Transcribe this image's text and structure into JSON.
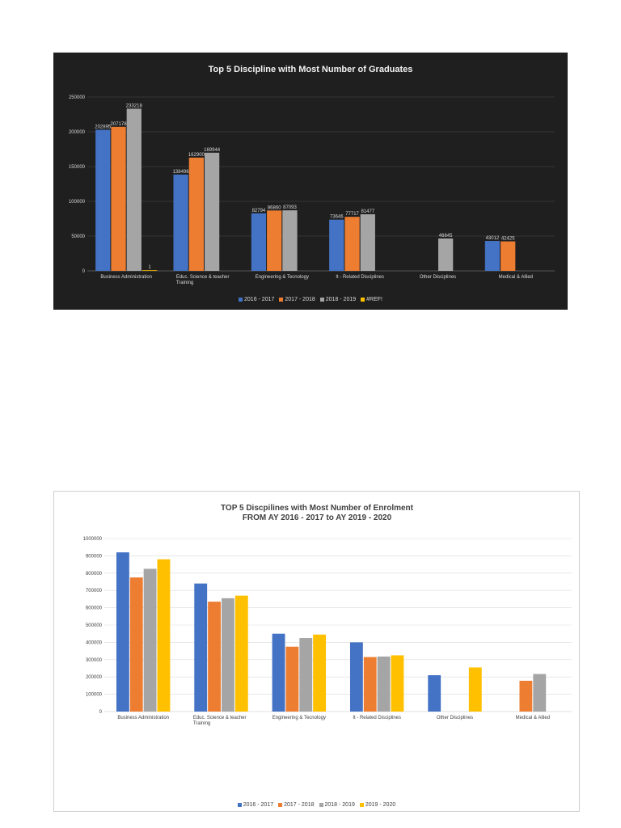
{
  "chart_data": [
    {
      "type": "bar",
      "title": "Top 5 Discipline with Most Number of Graduates",
      "categories": [
        "Business Administration",
        "Educ. Science & teacher Training",
        "Engineering & Tecnology",
        "It - Related Disciplines",
        "Other Disciplines",
        "Medical & Allied"
      ],
      "series": [
        {
          "name": "2016 - 2017",
          "color": "#4472c4",
          "values": [
            202895,
            138496,
            82794,
            73646,
            null,
            43012
          ]
        },
        {
          "name": "2017 - 2018",
          "color": "#ed7d31",
          "values": [
            207178,
            162900,
            86860,
            77717,
            null,
            42425
          ]
        },
        {
          "name": "2018 - 2019",
          "color": "#a5a5a5",
          "values": [
            233218,
            169944,
            87093,
            81477,
            46645,
            null
          ]
        },
        {
          "name": "#REF!",
          "color": "#ffc000",
          "values": [
            1,
            null,
            null,
            null,
            null,
            null
          ]
        }
      ],
      "value_labels": [
        [
          "202895",
          "138496",
          "82794",
          "73646",
          "",
          "43012"
        ],
        [
          "207178",
          "162900",
          "86860",
          "77717",
          "",
          "42425"
        ],
        [
          "233218",
          "169944",
          "87093",
          "81477",
          "46645",
          ""
        ],
        [
          "1",
          "",
          "",
          "",
          "",
          ""
        ]
      ],
      "yticks": [
        "0",
        "50000",
        "100000",
        "150000",
        "200000",
        "250000"
      ],
      "ylim": [
        0,
        250000
      ],
      "grid": true,
      "legend": "bottom"
    },
    {
      "type": "bar",
      "title": "TOP 5 Discpilines with Most Number of Enrolment",
      "subtitle": "FROM AY 2016 - 2017 to AY 2019 - 2020",
      "categories": [
        "Business Administration",
        "Educ. Science & teacher Training",
        "Engineering & Tecnology",
        "It - Related Disciplines",
        "Other Disciplines",
        "Medical & Allied"
      ],
      "series": [
        {
          "name": "2016 - 2017",
          "color": "#4472c4",
          "values": [
            920000,
            740000,
            450000,
            400000,
            210000,
            null
          ]
        },
        {
          "name": "2017 - 2018",
          "color": "#ed7d31",
          "values": [
            775000,
            635000,
            375000,
            315000,
            null,
            178000
          ]
        },
        {
          "name": "2018 - 2019",
          "color": "#a5a5a5",
          "values": [
            825000,
            655000,
            425000,
            318000,
            null,
            217000
          ]
        },
        {
          "name": "2019 - 2020",
          "color": "#ffc000",
          "values": [
            880000,
            670000,
            445000,
            325000,
            255000,
            null
          ]
        }
      ],
      "yticks": [
        "0",
        "100000",
        "200000",
        "300000",
        "400000",
        "500000",
        "600000",
        "700000",
        "800000",
        "900000",
        "1000000"
      ],
      "ylim": [
        0,
        1000000
      ],
      "grid": true,
      "legend": "bottom"
    }
  ]
}
